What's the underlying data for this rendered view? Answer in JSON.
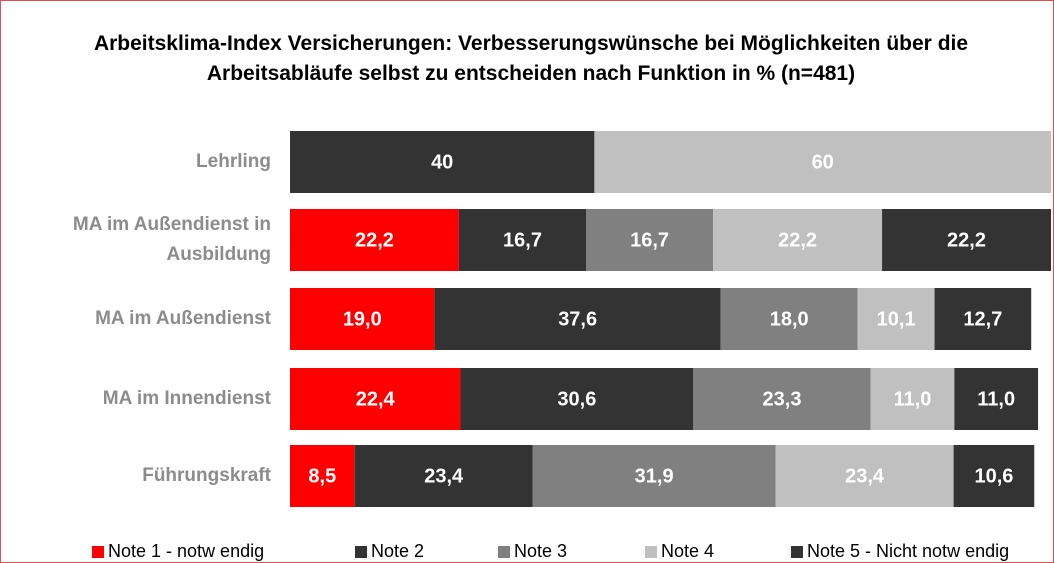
{
  "chart_data": {
    "type": "stacked-bar-horizontal",
    "title": "Arbeitsklima-Index Versicherungen: Verbesserungswünsche bei Möglichkeiten über die Arbeitsabläufe selbst zu entscheiden nach Funktion in % (n=481)",
    "categories": [
      "Lehrling",
      "MA im Außendienst in Ausbildung",
      "MA im Außendienst",
      "MA im Innendienst",
      "Führungskraft"
    ],
    "xlim": [
      0,
      100
    ],
    "series": [
      {
        "name": "Note 1 - notw endig",
        "color": "#ff0000",
        "values": [
          null,
          22.2,
          19.0,
          22.4,
          8.5
        ],
        "value_labels": [
          null,
          "22,2",
          "19,0",
          "22,4",
          "8,5"
        ]
      },
      {
        "name": "Note 2",
        "color": "#333333",
        "values": [
          40,
          16.7,
          37.6,
          30.6,
          23.4
        ],
        "value_labels": [
          "40",
          "16,7",
          "37,6",
          "30,6",
          "23,4"
        ]
      },
      {
        "name": "Note 3",
        "color": "#808080",
        "values": [
          null,
          16.7,
          18.0,
          23.3,
          31.9
        ],
        "value_labels": [
          null,
          "16,7",
          "18,0",
          "23,3",
          "31,9"
        ]
      },
      {
        "name": "Note 4",
        "color": "#c0c0c0",
        "values": [
          60,
          22.2,
          10.1,
          11.0,
          23.4
        ],
        "value_labels": [
          "60",
          "22,2",
          "10,1",
          "11,0",
          "23,4"
        ]
      },
      {
        "name": "Note 5 - Nicht notw endig",
        "color": "#333333",
        "values": [
          null,
          22.2,
          12.7,
          11.0,
          10.6
        ],
        "value_labels": [
          null,
          "22,2",
          "12,7",
          "11,0",
          "10,6"
        ]
      }
    ]
  }
}
